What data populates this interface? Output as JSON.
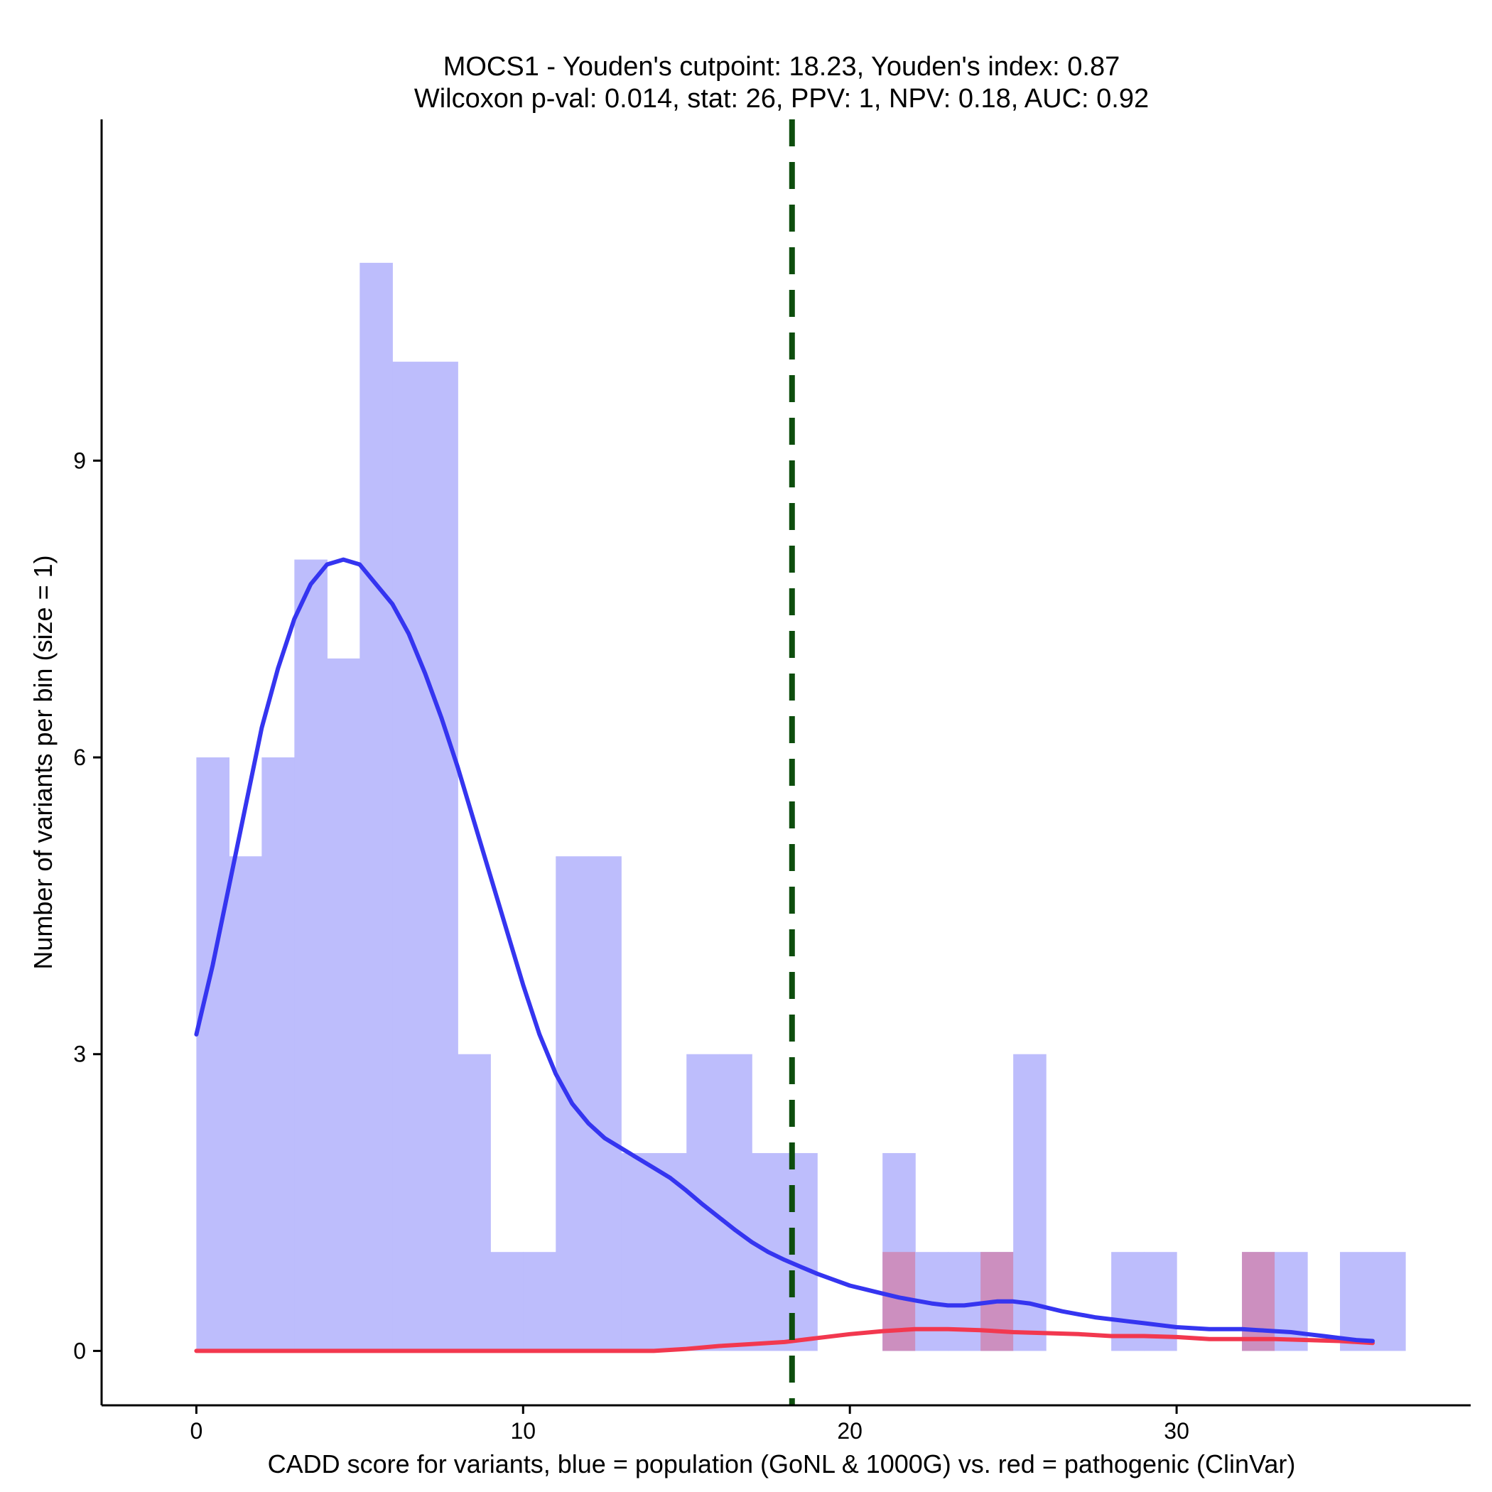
{
  "chart_data": {
    "type": "histogram+density",
    "title_line1": "MOCS1 - Youden's cutpoint: 18.23, Youden's index: 0.87",
    "title_line2": "Wilcoxon p-val: 0.014, stat: 26, PPV: 1, NPV: 0.18, AUC: 0.92",
    "xlabel": "CADD score for variants, blue = population (GoNL & 1000G) vs. red = pathogenic (ClinVar)",
    "ylabel": "Number of variants per bin (size = 1)",
    "xlim": [
      -2.9,
      39
    ],
    "ylim": [
      -0.55,
      12.45
    ],
    "x_ticks": [
      0,
      10,
      20,
      30
    ],
    "y_ticks": [
      0,
      3,
      6,
      9
    ],
    "bin_width": 1,
    "cutpoint": 18.23,
    "colors": {
      "population_bar": "#bdbdfc",
      "pathogenic_bar": "#cc8fbf",
      "population_line": "#3535f0",
      "pathogenic_line": "#f2384f",
      "cutpoint_line": "#0d4d0d"
    },
    "series": [
      {
        "name": "population (GoNL & 1000G)",
        "bins": [
          {
            "x": 0,
            "count": 6
          },
          {
            "x": 1,
            "count": 5
          },
          {
            "x": 2,
            "count": 6
          },
          {
            "x": 3,
            "count": 8
          },
          {
            "x": 4,
            "count": 7
          },
          {
            "x": 5,
            "count": 11
          },
          {
            "x": 6,
            "count": 10
          },
          {
            "x": 7,
            "count": 10
          },
          {
            "x": 8,
            "count": 3
          },
          {
            "x": 9,
            "count": 1
          },
          {
            "x": 10,
            "count": 1
          },
          {
            "x": 11,
            "count": 5
          },
          {
            "x": 12,
            "count": 5
          },
          {
            "x": 13,
            "count": 2
          },
          {
            "x": 14,
            "count": 2
          },
          {
            "x": 15,
            "count": 3
          },
          {
            "x": 16,
            "count": 3
          },
          {
            "x": 17,
            "count": 2
          },
          {
            "x": 18,
            "count": 2
          },
          {
            "x": 21,
            "count": 2
          },
          {
            "x": 22,
            "count": 1
          },
          {
            "x": 23,
            "count": 1
          },
          {
            "x": 24,
            "count": 1
          },
          {
            "x": 25,
            "count": 3
          },
          {
            "x": 28,
            "count": 1
          },
          {
            "x": 29,
            "count": 1
          },
          {
            "x": 32,
            "count": 1
          },
          {
            "x": 33,
            "count": 1
          },
          {
            "x": 35,
            "count": 1
          },
          {
            "x": 36,
            "count": 1
          }
        ],
        "density_curve": [
          [
            0,
            3.2
          ],
          [
            0.5,
            3.9
          ],
          [
            1,
            4.7
          ],
          [
            1.5,
            5.5
          ],
          [
            2,
            6.3
          ],
          [
            2.5,
            6.9
          ],
          [
            3,
            7.4
          ],
          [
            3.5,
            7.75
          ],
          [
            4,
            7.95
          ],
          [
            4.5,
            8.0
          ],
          [
            5,
            7.95
          ],
          [
            5.5,
            7.75
          ],
          [
            6,
            7.55
          ],
          [
            6.5,
            7.25
          ],
          [
            7,
            6.85
          ],
          [
            7.5,
            6.4
          ],
          [
            8,
            5.9
          ],
          [
            8.5,
            5.35
          ],
          [
            9,
            4.8
          ],
          [
            9.5,
            4.25
          ],
          [
            10,
            3.7
          ],
          [
            10.5,
            3.2
          ],
          [
            11,
            2.8
          ],
          [
            11.5,
            2.5
          ],
          [
            12,
            2.3
          ],
          [
            12.5,
            2.15
          ],
          [
            13,
            2.05
          ],
          [
            13.5,
            1.95
          ],
          [
            14,
            1.85
          ],
          [
            14.5,
            1.75
          ],
          [
            15,
            1.62
          ],
          [
            15.5,
            1.48
          ],
          [
            16,
            1.35
          ],
          [
            16.5,
            1.22
          ],
          [
            17,
            1.1
          ],
          [
            17.5,
            1.0
          ],
          [
            18,
            0.92
          ],
          [
            18.5,
            0.85
          ],
          [
            19,
            0.78
          ],
          [
            19.5,
            0.72
          ],
          [
            20,
            0.66
          ],
          [
            20.5,
            0.62
          ],
          [
            21,
            0.58
          ],
          [
            21.5,
            0.54
          ],
          [
            22,
            0.51
          ],
          [
            22.5,
            0.48
          ],
          [
            23,
            0.46
          ],
          [
            23.5,
            0.46
          ],
          [
            24,
            0.48
          ],
          [
            24.5,
            0.5
          ],
          [
            25,
            0.5
          ],
          [
            25.5,
            0.48
          ],
          [
            26,
            0.44
          ],
          [
            26.5,
            0.4
          ],
          [
            27,
            0.37
          ],
          [
            27.5,
            0.34
          ],
          [
            28,
            0.32
          ],
          [
            28.5,
            0.3
          ],
          [
            29,
            0.28
          ],
          [
            29.5,
            0.26
          ],
          [
            30,
            0.24
          ],
          [
            30.5,
            0.23
          ],
          [
            31,
            0.22
          ],
          [
            31.5,
            0.22
          ],
          [
            32,
            0.22
          ],
          [
            32.5,
            0.21
          ],
          [
            33,
            0.2
          ],
          [
            33.5,
            0.19
          ],
          [
            34,
            0.17
          ],
          [
            34.5,
            0.15
          ],
          [
            35,
            0.13
          ],
          [
            35.5,
            0.11
          ],
          [
            36,
            0.1
          ]
        ]
      },
      {
        "name": "pathogenic (ClinVar)",
        "bins": [
          {
            "x": 21,
            "count": 1
          },
          {
            "x": 24,
            "count": 1
          },
          {
            "x": 32,
            "count": 1
          }
        ],
        "density_curve": [
          [
            0,
            0
          ],
          [
            5,
            0
          ],
          [
            10,
            0
          ],
          [
            13,
            0
          ],
          [
            14,
            0
          ],
          [
            14.5,
            0.01
          ],
          [
            15,
            0.02
          ],
          [
            16,
            0.05
          ],
          [
            17,
            0.07
          ],
          [
            18,
            0.09
          ],
          [
            19,
            0.13
          ],
          [
            20,
            0.17
          ],
          [
            21,
            0.2
          ],
          [
            22,
            0.22
          ],
          [
            23,
            0.22
          ],
          [
            24,
            0.21
          ],
          [
            25,
            0.19
          ],
          [
            26,
            0.18
          ],
          [
            27,
            0.17
          ],
          [
            28,
            0.15
          ],
          [
            29,
            0.15
          ],
          [
            30,
            0.14
          ],
          [
            31,
            0.12
          ],
          [
            32,
            0.12
          ],
          [
            33,
            0.12
          ],
          [
            34,
            0.11
          ],
          [
            35,
            0.1
          ],
          [
            36,
            0.08
          ]
        ]
      }
    ]
  }
}
